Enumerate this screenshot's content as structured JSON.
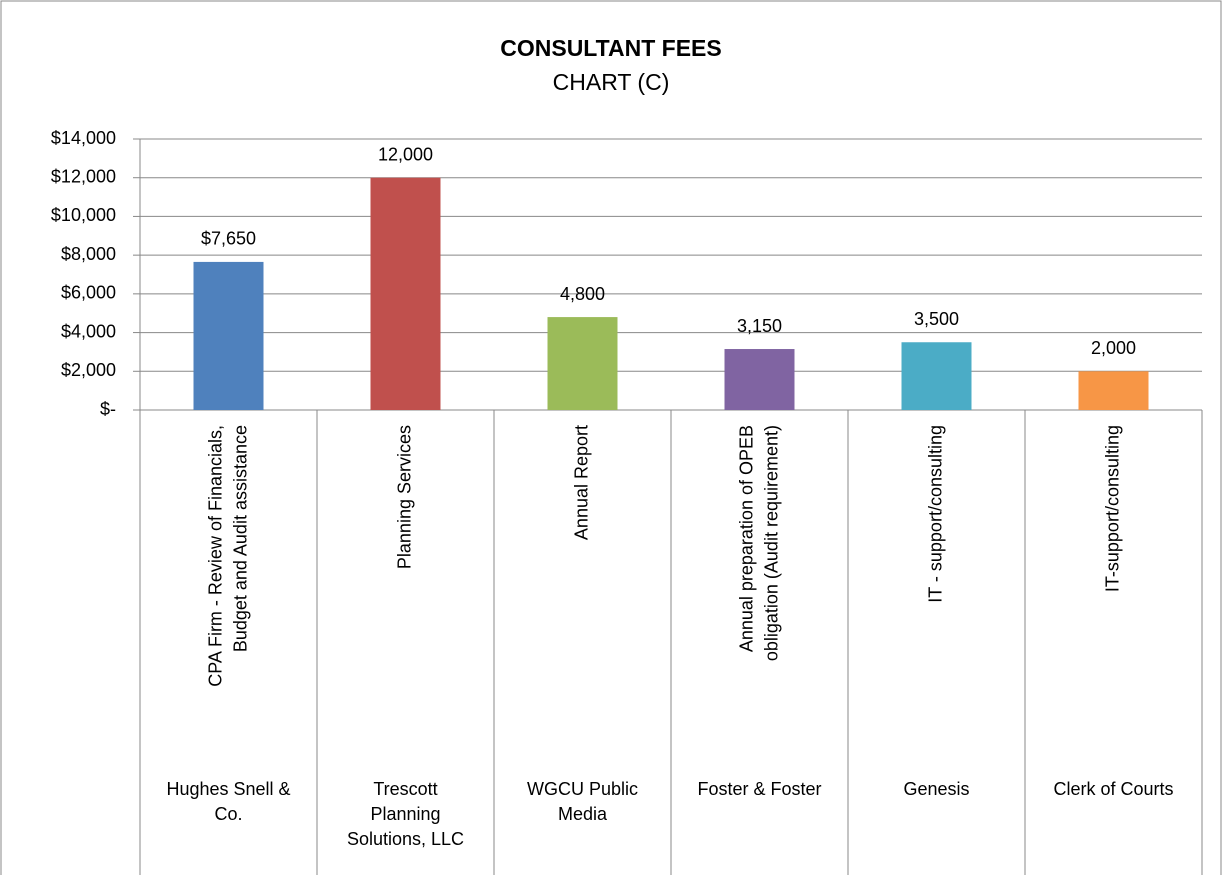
{
  "chart_data": {
    "type": "bar",
    "title": "CONSULTANT FEES",
    "subtitle": "CHART (C)",
    "categories": [
      "CPA  Firm - Review of Financials,\nBudget and Audit assistance",
      "Planning Services",
      "Annual Report",
      "Annual preparation of OPEB\nobligation (Audit requirement)",
      "IT -  support/consulting",
      "IT-support/consulting"
    ],
    "groups": [
      "Hughes Snell  &\nCo.",
      "Trescott\nPlanning\nSolutions, LLC",
      "WGCU Public\nMedia",
      "Foster & Foster",
      "Genesis",
      "Clerk of Courts"
    ],
    "values": [
      7650,
      12000,
      4800,
      3150,
      3500,
      2000
    ],
    "value_labels": [
      "$7,650",
      "12,000",
      "4,800",
      "3,150",
      "3,500",
      "2,000"
    ],
    "colors": [
      "#4f81bd",
      "#c0504d",
      "#9bbb59",
      "#8064a2",
      "#4bacc6",
      "#f79646"
    ],
    "ylim": [
      0,
      14000
    ],
    "yticks": [
      {
        "value": 0,
        "label": "$-"
      },
      {
        "value": 2000,
        "label": "$2,000"
      },
      {
        "value": 4000,
        "label": "$4,000"
      },
      {
        "value": 6000,
        "label": "$6,000"
      },
      {
        "value": 8000,
        "label": "$8,000"
      },
      {
        "value": 10000,
        "label": "$10,000"
      },
      {
        "value": 12000,
        "label": "$12,000"
      },
      {
        "value": 14000,
        "label": "$14,000"
      }
    ],
    "grid": true
  }
}
